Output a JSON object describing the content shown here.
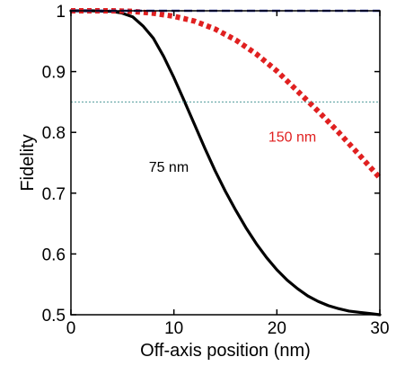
{
  "chart_data": {
    "type": "line",
    "title": "",
    "xlabel": "Off-axis position (nm)",
    "ylabel": "Fidelity",
    "xlim": [
      0,
      30
    ],
    "ylim": [
      0.5,
      1.0
    ],
    "xticks": [
      0,
      10,
      20,
      30
    ],
    "yticks": [
      0.5,
      0.6,
      0.7,
      0.8,
      0.9,
      1
    ],
    "xtick_labels": [
      "0",
      "10",
      "20",
      "30"
    ],
    "ytick_labels": [
      "0.5",
      "0.6",
      "0.7",
      "0.8",
      "0.9",
      "1"
    ],
    "grid": false,
    "series": [
      {
        "name": "75 nm",
        "color": "#000000",
        "style": "solid",
        "x": [
          0,
          2,
          4,
          5,
          6,
          7,
          8,
          9,
          10,
          11,
          12,
          13,
          14,
          15,
          16,
          17,
          18,
          19,
          20,
          21,
          22,
          23,
          24,
          25,
          26,
          27,
          28,
          29,
          30
        ],
        "y": [
          1.0,
          1.0,
          0.999,
          0.996,
          0.99,
          0.975,
          0.955,
          0.925,
          0.89,
          0.852,
          0.813,
          0.774,
          0.737,
          0.703,
          0.672,
          0.643,
          0.617,
          0.594,
          0.574,
          0.557,
          0.543,
          0.531,
          0.522,
          0.515,
          0.51,
          0.506,
          0.504,
          0.502,
          0.5
        ]
      },
      {
        "name": "150 nm",
        "color": "#e02020",
        "style": "dotted",
        "x": [
          0,
          4,
          6,
          8,
          10,
          12,
          14,
          16,
          18,
          20,
          22,
          24,
          26,
          28,
          30
        ],
        "y": [
          1.0,
          1.0,
          0.999,
          0.996,
          0.991,
          0.983,
          0.97,
          0.952,
          0.929,
          0.901,
          0.868,
          0.835,
          0.8,
          0.763,
          0.725
        ]
      },
      {
        "name": "",
        "color": "#2233aa",
        "style": "dashed",
        "x": [
          0,
          30
        ],
        "y": [
          1.0,
          1.0
        ]
      },
      {
        "name": "",
        "color": "#4f9a9a",
        "style": "thin-dotted",
        "x": [
          0,
          30
        ],
        "y": [
          0.85,
          0.85
        ]
      }
    ],
    "annotations": [
      {
        "text": "75 nm",
        "x": 9.5,
        "y": 0.735,
        "color": "#000000"
      },
      {
        "text": "150 nm",
        "x": 21.5,
        "y": 0.785,
        "color": "#e02020"
      }
    ]
  }
}
